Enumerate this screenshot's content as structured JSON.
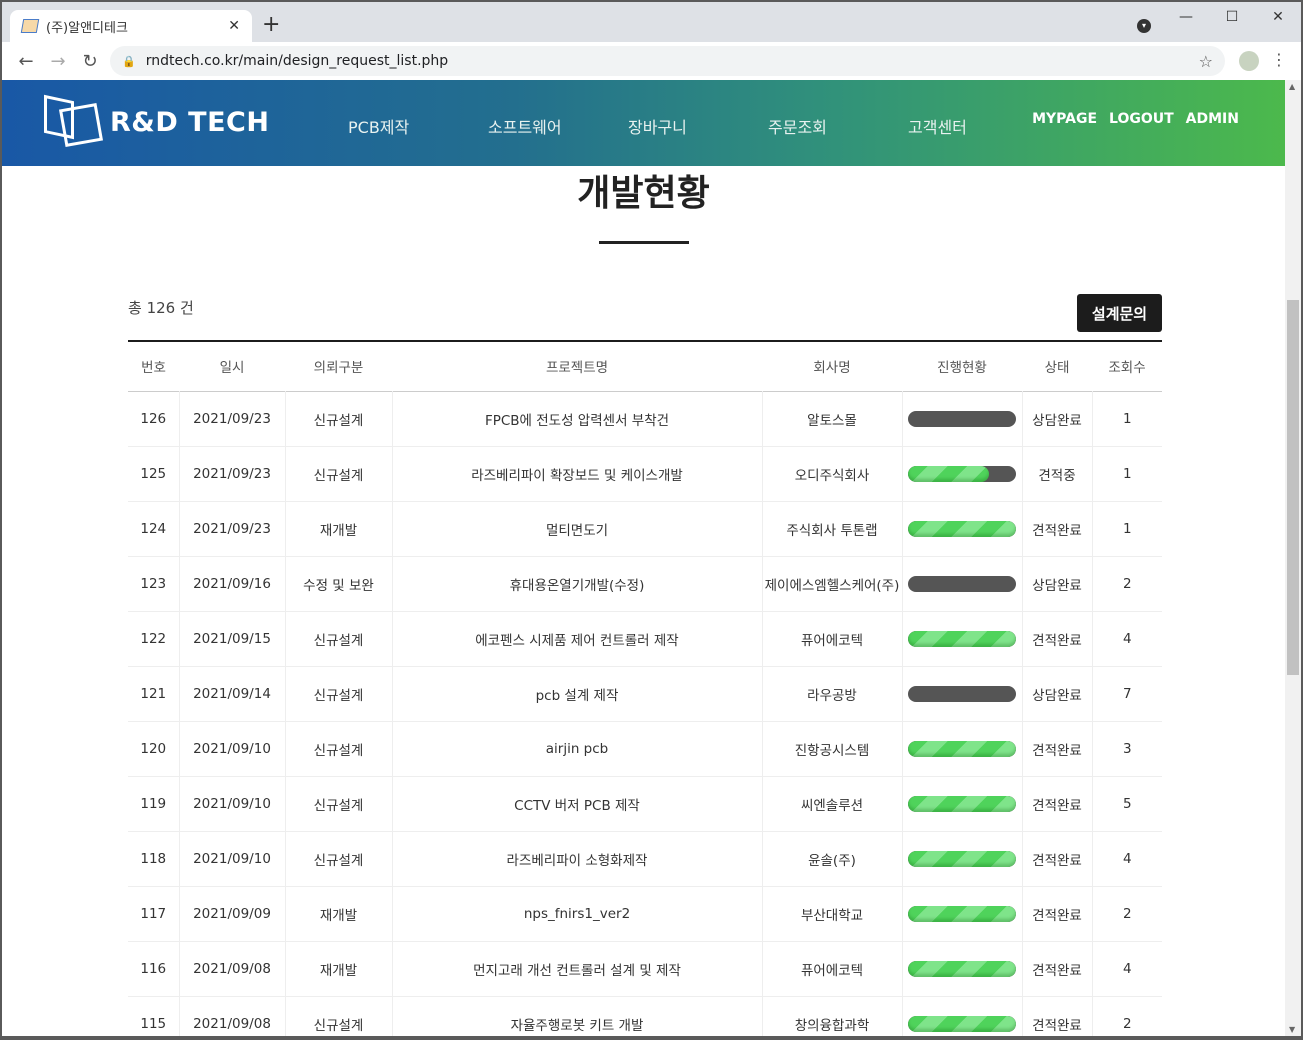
{
  "browser": {
    "tab_title": "(주)알앤디테크",
    "url": "rndtech.co.kr/main/design_request_list.php"
  },
  "header": {
    "logo": "R&D TECH",
    "menu": [
      "PCB제작",
      "소프트웨어",
      "장바구니",
      "주문조회",
      "고객센터"
    ],
    "util": [
      "MYPAGE",
      "LOGOUT",
      "ADMIN"
    ]
  },
  "page": {
    "title": "개발현황",
    "total": "총 126 건",
    "inquiry_button": "설계문의"
  },
  "colors": {
    "header_start": "#1958a6",
    "header_end": "#4cb94c",
    "progress_fill": "#4fd35b",
    "progress_track": "#555555"
  },
  "table": {
    "columns": [
      "번호",
      "일시",
      "의뢰구분",
      "프로젝트명",
      "회사명",
      "진행현황",
      "상태",
      "조회수"
    ],
    "rows": [
      {
        "no": "126",
        "date": "2021/09/23",
        "type": "신규설계",
        "project": "FPCB에 전도성 압력센서 부착건",
        "company": "알토스몰",
        "progress": 0,
        "status": "상담완료",
        "views": "1"
      },
      {
        "no": "125",
        "date": "2021/09/23",
        "type": "신규설계",
        "project": "라즈베리파이 확장보드 및 케이스개발",
        "company": "오디주식회사",
        "progress": 75,
        "status": "견적중",
        "views": "1"
      },
      {
        "no": "124",
        "date": "2021/09/23",
        "type": "재개발",
        "project": "멀티면도기",
        "company": "주식회사 투톤랩",
        "progress": 100,
        "status": "견적완료",
        "views": "1"
      },
      {
        "no": "123",
        "date": "2021/09/16",
        "type": "수정 및 보완",
        "project": "휴대용온열기개발(수정)",
        "company": "제이에스엠헬스케어(주)",
        "progress": 0,
        "status": "상담완료",
        "views": "2"
      },
      {
        "no": "122",
        "date": "2021/09/15",
        "type": "신규설계",
        "project": "에코펜스 시제품 제어 컨트롤러 제작",
        "company": "퓨어에코텍",
        "progress": 100,
        "status": "견적완료",
        "views": "4"
      },
      {
        "no": "121",
        "date": "2021/09/14",
        "type": "신규설계",
        "project": "pcb 설계 제작",
        "company": "라우공방",
        "progress": 0,
        "status": "상담완료",
        "views": "7"
      },
      {
        "no": "120",
        "date": "2021/09/10",
        "type": "신규설계",
        "project": "airjin pcb",
        "company": "진항공시스템",
        "progress": 100,
        "status": "견적완료",
        "views": "3"
      },
      {
        "no": "119",
        "date": "2021/09/10",
        "type": "신규설계",
        "project": "CCTV 버저 PCB 제작",
        "company": "씨엔솔루션",
        "progress": 100,
        "status": "견적완료",
        "views": "5"
      },
      {
        "no": "118",
        "date": "2021/09/10",
        "type": "신규설계",
        "project": "라즈베리파이 소형화제작",
        "company": "윤솔(주)",
        "progress": 100,
        "status": "견적완료",
        "views": "4"
      },
      {
        "no": "117",
        "date": "2021/09/09",
        "type": "재개발",
        "project": "nps_fnirs1_ver2",
        "company": "부산대학교",
        "progress": 100,
        "status": "견적완료",
        "views": "2"
      },
      {
        "no": "116",
        "date": "2021/09/08",
        "type": "재개발",
        "project": "먼지고래 개선 컨트롤러 설계 및 제작",
        "company": "퓨어에코텍",
        "progress": 100,
        "status": "견적완료",
        "views": "4"
      },
      {
        "no": "115",
        "date": "2021/09/08",
        "type": "신규설계",
        "project": "자율주행로봇 키트 개발",
        "company": "창의융합과학",
        "progress": 100,
        "status": "견적완료",
        "views": "2"
      }
    ]
  }
}
